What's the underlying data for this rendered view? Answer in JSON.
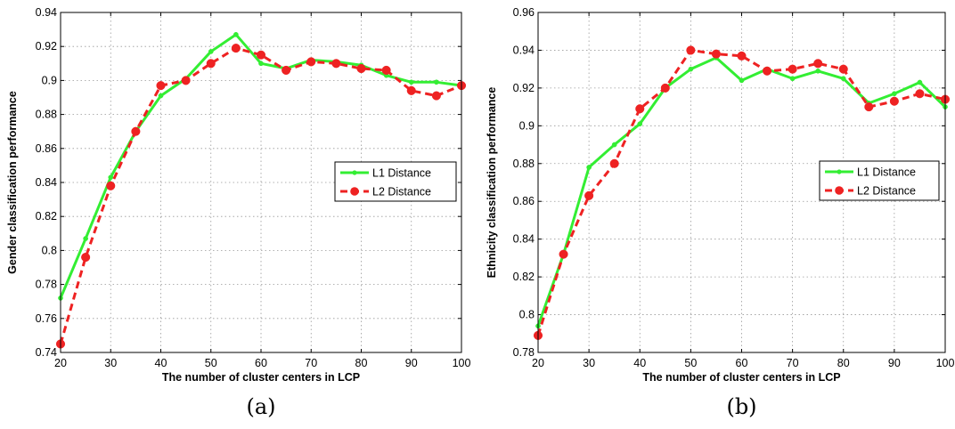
{
  "chart_data": [
    {
      "type": "line",
      "caption": "(a)",
      "xlabel": "The number of cluster centers in LCP",
      "ylabel": "Gender classification performance",
      "xlim": [
        20,
        100
      ],
      "ylim": [
        0.74,
        0.94
      ],
      "x_ticks": [
        "20",
        "30",
        "40",
        "50",
        "60",
        "70",
        "80",
        "90",
        "100"
      ],
      "y_ticks": [
        "0.74",
        "0.76",
        "0.78",
        "0.8",
        "0.82",
        "0.84",
        "0.86",
        "0.88",
        "0.9",
        "0.92",
        "0.94"
      ],
      "grid": true,
      "legend_position": "center-right",
      "x": [
        20,
        25,
        30,
        35,
        40,
        45,
        50,
        55,
        60,
        65,
        70,
        75,
        80,
        85,
        90,
        95,
        100
      ],
      "series": [
        {
          "name": "L1 Distance",
          "color": "#33ee33",
          "line": "solid",
          "marker": "dot",
          "values": [
            0.772,
            0.807,
            0.843,
            0.87,
            0.891,
            0.901,
            0.917,
            0.927,
            0.91,
            0.907,
            0.912,
            0.911,
            0.909,
            0.903,
            0.899,
            0.899,
            0.897
          ]
        },
        {
          "name": "L2 Distance",
          "color": "#ee2222",
          "line": "dashed",
          "marker": "circle",
          "values": [
            0.745,
            0.796,
            0.838,
            0.87,
            0.897,
            0.9,
            0.91,
            0.919,
            0.915,
            0.906,
            0.911,
            0.91,
            0.907,
            0.906,
            0.894,
            0.891,
            0.897
          ]
        }
      ]
    },
    {
      "type": "line",
      "caption": "(b)",
      "xlabel": "The number of cluster centers in LCP",
      "ylabel": "Ethnicity classification performance",
      "xlim": [
        20,
        100
      ],
      "ylim": [
        0.78,
        0.96
      ],
      "x_ticks": [
        "20",
        "30",
        "40",
        "50",
        "60",
        "70",
        "80",
        "90",
        "100"
      ],
      "y_ticks": [
        "0.78",
        "0.8",
        "0.82",
        "0.84",
        "0.86",
        "0.88",
        "0.9",
        "0.92",
        "0.94",
        "0.96"
      ],
      "grid": true,
      "legend_position": "center-right",
      "x": [
        20,
        25,
        30,
        35,
        40,
        45,
        50,
        55,
        60,
        65,
        70,
        75,
        80,
        85,
        90,
        95,
        100
      ],
      "series": [
        {
          "name": "L1 Distance",
          "color": "#33ee33",
          "line": "solid",
          "marker": "dot",
          "values": [
            0.794,
            0.832,
            0.878,
            0.89,
            0.901,
            0.92,
            0.93,
            0.936,
            0.924,
            0.93,
            0.925,
            0.929,
            0.925,
            0.912,
            0.917,
            0.923,
            0.91
          ]
        },
        {
          "name": "L2 Distance",
          "color": "#ee2222",
          "line": "dashed",
          "marker": "circle",
          "values": [
            0.789,
            0.832,
            0.863,
            0.88,
            0.909,
            0.92,
            0.94,
            0.938,
            0.937,
            0.929,
            0.93,
            0.933,
            0.93,
            0.91,
            0.913,
            0.917,
            0.914
          ]
        }
      ]
    }
  ]
}
